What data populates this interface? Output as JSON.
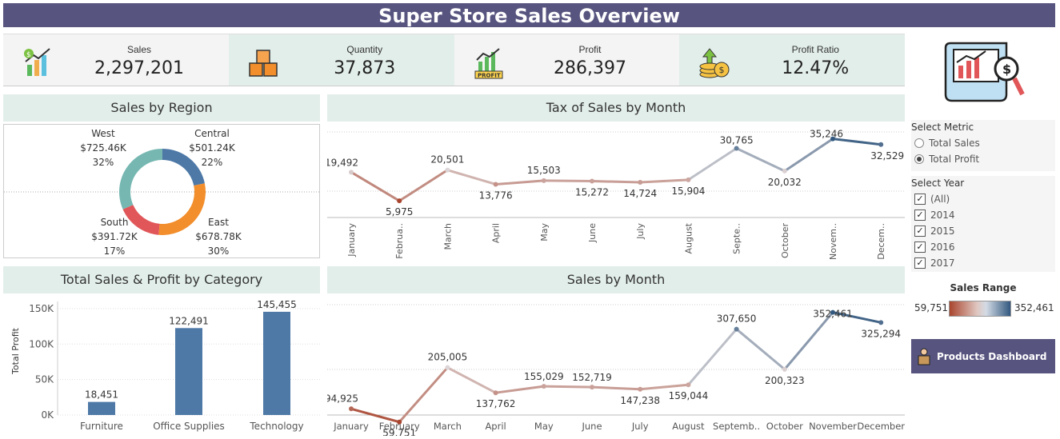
{
  "title": "Super Store Sales Overview",
  "kpis": [
    {
      "label": "Sales",
      "value": "2,297,201",
      "icon": "sales-growth-icon"
    },
    {
      "label": "Quantity",
      "value": "37,873",
      "icon": "boxes-icon"
    },
    {
      "label": "Profit",
      "value": "286,397",
      "icon": "profit-chart-icon",
      "badge": "PROFIT"
    },
    {
      "label": "Profit Ratio",
      "value": "12.47%",
      "icon": "coins-growth-icon"
    }
  ],
  "panels": {
    "region": "Sales by Region",
    "tax": "Tax of Sales by Month",
    "category": "Total Sales & Profit by Category",
    "sales_month": "Sales by Month"
  },
  "sidebar": {
    "metric_label": "Select Metric",
    "metric_options": [
      "Total Sales",
      "Total Profit"
    ],
    "metric_selected": "Total Profit",
    "year_label": "Select Year",
    "year_options": [
      "(All)",
      "2014",
      "2015",
      "2016",
      "2017"
    ],
    "legend_title": "Sales Range",
    "legend_min": "59,751",
    "legend_max": "352,461",
    "button_label": "Products Dashboard"
  },
  "colors": {
    "header": "#57547f",
    "panel_head": "#e2eeea",
    "bar": "#4e79a7",
    "low": "#a9452e",
    "high": "#32587f"
  },
  "chart_data": [
    {
      "type": "pie",
      "title": "Sales by Region",
      "slices": [
        {
          "name": "West",
          "value": 725.46,
          "label": "$725.46K",
          "pct": "32%",
          "color": "#76b7b2"
        },
        {
          "name": "Central",
          "value": 501.24,
          "label": "$501.24K",
          "pct": "22%",
          "color": "#4e79a7"
        },
        {
          "name": "East",
          "value": 678.78,
          "label": "$678.78K",
          "pct": "30%",
          "color": "#f28e2b"
        },
        {
          "name": "South",
          "value": 391.72,
          "label": "$391.72K",
          "pct": "17%",
          "color": "#e15759"
        }
      ]
    },
    {
      "type": "line",
      "title": "Tax of Sales by Month",
      "categories": [
        "January",
        "Februa..",
        "March",
        "April",
        "May",
        "June",
        "July",
        "August",
        "Septe..",
        "October",
        "Novem..",
        "Decem.."
      ],
      "values": [
        19492,
        5975,
        20501,
        13776,
        15503,
        15272,
        14724,
        15904,
        30765,
        20032,
        35246,
        32529
      ],
      "labels": [
        "19,492",
        "5,975",
        "20,501",
        "13,776",
        "15,503",
        "15,272",
        "14,724",
        "15,904",
        "30,765",
        "20,032",
        "35,246",
        "32,529"
      ],
      "ylim": [
        -20000,
        40000
      ]
    },
    {
      "type": "bar",
      "title": "Total Sales & Profit by Category",
      "categories": [
        "Furniture",
        "Office Supplies",
        "Technology"
      ],
      "values": [
        18451,
        122491,
        145455
      ],
      "labels": [
        "18,451",
        "122,491",
        "145,455"
      ],
      "ylabel": "Total Profit",
      "yticks": [
        {
          "v": 0,
          "t": "0K"
        },
        {
          "v": 50000,
          "t": "50K"
        },
        {
          "v": 100000,
          "t": "100K"
        },
        {
          "v": 150000,
          "t": "150K"
        }
      ],
      "ylim": [
        0,
        160000
      ]
    },
    {
      "type": "line",
      "title": "Sales by Month",
      "categories": [
        "January",
        "February",
        "March",
        "April",
        "May",
        "June",
        "July",
        "August",
        "Septemb..",
        "October",
        "November",
        "December"
      ],
      "values": [
        94925,
        59751,
        205005,
        137762,
        155029,
        152719,
        147238,
        159044,
        307650,
        200323,
        352461,
        325294
      ],
      "labels": [
        "94,925",
        "59,751",
        "205,005",
        "137,762",
        "155,029",
        "152,719",
        "147,238",
        "159,044",
        "307,650",
        "200,323",
        "352,461",
        "325,294"
      ],
      "ylim": [
        40000,
        390000
      ]
    }
  ]
}
